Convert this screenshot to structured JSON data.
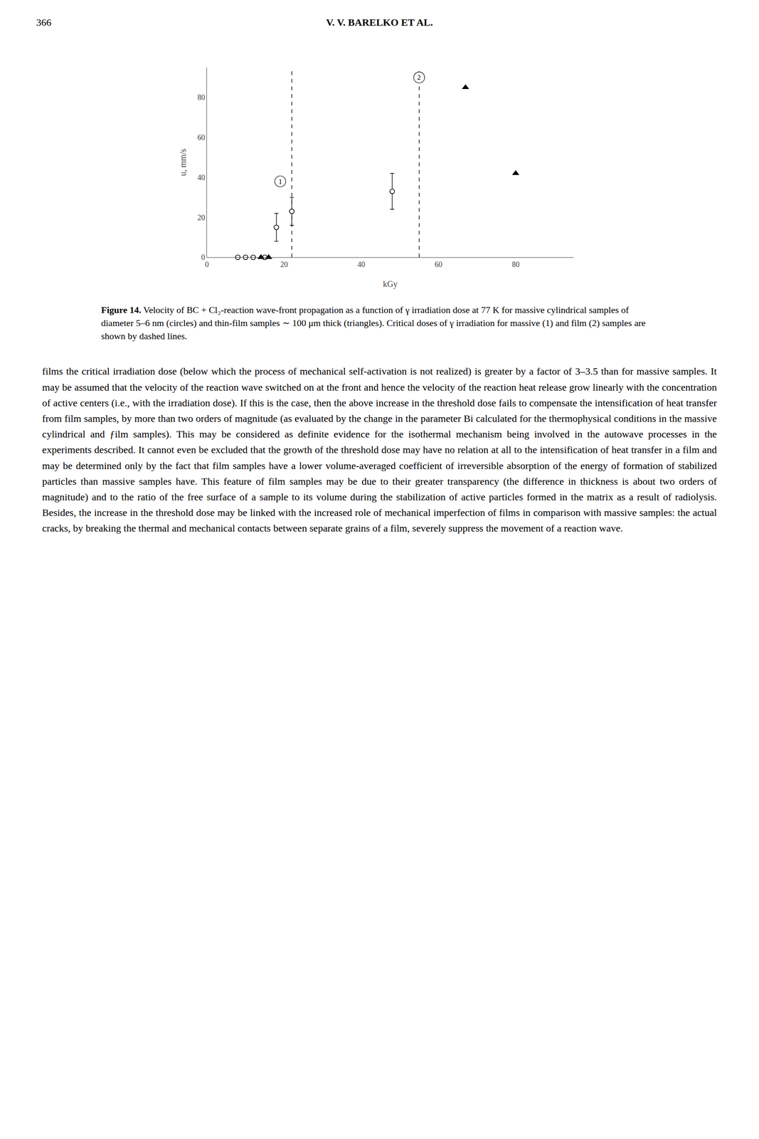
{
  "page": {
    "page_number": "366",
    "header": "V. V. BARELKO ET AL.",
    "caption_label": "Figure 14.",
    "caption": "Velocity of BC + Cl₂-reaction wave-front propagation as a function of γ irradiation dose at 77 K for massive cylindrical samples of diameter 5–6 nm (circles) and thin-film samples ∼ 100 μm thick (triangles). Critical doses of γ irradiation for massive (1) and film (2) samples are shown by dashed lines.",
    "body_text": "films the critical irradiation dose (below which the process of mechanical self-activation is not realized) is greater by a factor of 3–3.5 than for massive samples. It may be assumed that the velocity of the reaction wave switched on at the front and hence the velocity of the reaction heat release grow linearly with the concentration of active centers (i.e., with the irradiation dose). If this is the case, then the above increase in the threshold dose fails to compensate the intensification of heat transfer from film samples, by more than two orders of magnitude (as evaluated by the change in the parameter Bi calculated for the thermophysical conditions in the massive cylindrical and ƒilm samples). This may be considered as definite evidence for the isothermal mechanism being involved in the autowave processes in the experiments described. It cannot even be excluded that the growth of the threshold dose may have no relation at all to the intensification of heat transfer in a film and may be determined only by the fact that film samples have a lower volume-averaged coefficient of irreversible absorption of the energy of formation of stabilized particles than massive samples have. This feature of film samples may be due to their greater transparency (the difference in thickness is about two orders of magnitude) and to the ratio of the free surface of a sample to its volume during the stabilization of active particles formed in the matrix as a result of radiolysis. Besides, the increase in the threshold dose may be linked with the increased role of mechanical imperfection of films in comparison with massive samples: the actual cracks, by breaking the thermal and mechanical contacts between separate grains of a film, severely suppress the movement of a reaction wave."
  },
  "chart_data": {
    "type": "scatter",
    "xlabel": "kGy",
    "ylabel": "u, mm/s",
    "xlim": [
      0,
      95
    ],
    "ylim": [
      0,
      95
    ],
    "xticks": [
      0,
      20,
      40,
      60,
      80
    ],
    "yticks": [
      0,
      20,
      40,
      60,
      80
    ],
    "grid": false,
    "series": [
      {
        "marker": "open_circle",
        "color": "#000000",
        "x": [
          8,
          10,
          12,
          15,
          18,
          22,
          48
        ],
        "values": [
          0,
          0,
          0,
          0,
          15,
          23,
          33
        ],
        "error_low": [
          0,
          0,
          0,
          0,
          7,
          7,
          9
        ],
        "error_high": [
          0,
          0,
          0,
          0,
          7,
          7,
          9
        ]
      },
      {
        "marker": "triangle",
        "color": "#000000",
        "x": [
          14,
          16,
          67,
          80
        ],
        "values": [
          0,
          0,
          85,
          42
        ]
      }
    ],
    "vlines": {
      "x": [
        22,
        55
      ],
      "line_style": "dashed",
      "color": "#000000"
    },
    "annotations": [
      {
        "x": 19,
        "y": 38,
        "text": "1"
      },
      {
        "x": 55,
        "y": 90,
        "text": "2"
      }
    ]
  }
}
